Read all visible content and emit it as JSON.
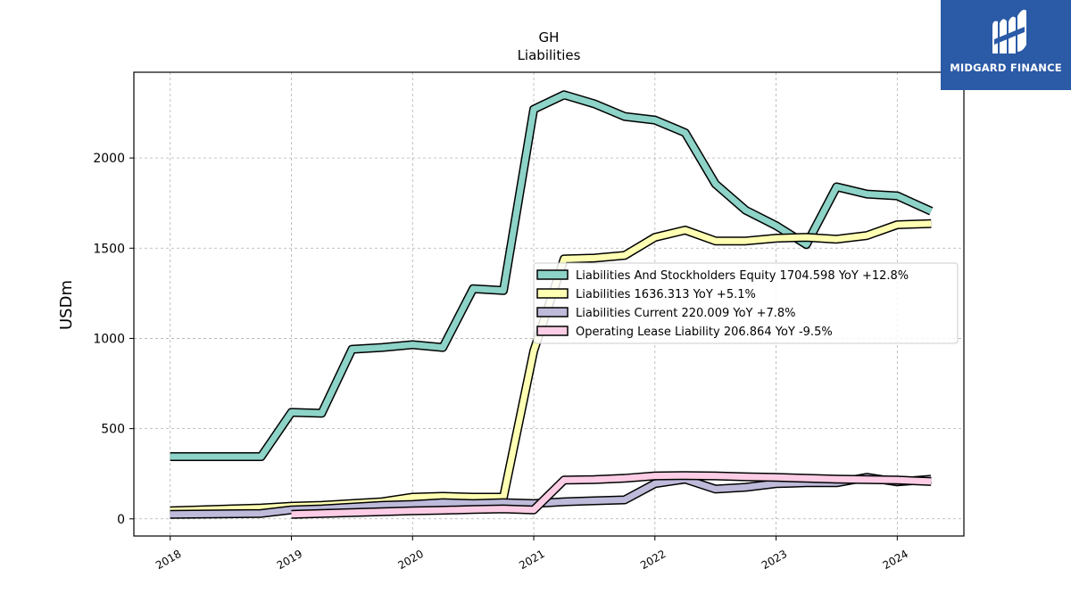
{
  "brand": {
    "name": "MIDGARD FINANCE",
    "color": "#2b5aa6"
  },
  "chart_data": {
    "type": "line",
    "title": "GH",
    "subtitle": "Liabilities",
    "xlabel": "",
    "ylabel": "USDm",
    "xlim": [
      2017.7,
      2024.55
    ],
    "ylim": [
      -95,
      2475
    ],
    "x_ticks": [
      2018,
      2019,
      2020,
      2021,
      2022,
      2023,
      2024
    ],
    "y_ticks": [
      0,
      500,
      1000,
      1500,
      2000
    ],
    "grid": true,
    "legend_position": "center-right",
    "series": [
      {
        "name": "Liabilities And Stockholders Equity  1704.598 YoY +12.8%",
        "color": "#8dd3c7",
        "x": [
          2018.0,
          2018.75,
          2019.0,
          2019.25,
          2019.5,
          2019.75,
          2020.0,
          2020.25,
          2020.5,
          2020.75,
          2021.0,
          2021.25,
          2021.5,
          2021.75,
          2022.0,
          2022.25,
          2022.5,
          2022.75,
          2023.0,
          2023.25,
          2023.5,
          2023.75,
          2024.0,
          2024.28
        ],
        "values": [
          345,
          345,
          590,
          585,
          940,
          950,
          965,
          950,
          1275,
          1265,
          2270,
          2350,
          2300,
          2230,
          2210,
          2140,
          1855,
          1710,
          1625,
          1520,
          1840,
          1800,
          1790,
          1705
        ]
      },
      {
        "name": "Liabilities  1636.313 YoY +5.1%",
        "color": "#ffffb3",
        "x": [
          2018.0,
          2018.75,
          2019.0,
          2019.25,
          2019.5,
          2019.75,
          2020.0,
          2020.25,
          2020.5,
          2020.75,
          2021.0,
          2021.25,
          2021.5,
          2021.75,
          2022.0,
          2022.25,
          2022.5,
          2022.75,
          2023.0,
          2023.25,
          2023.5,
          2023.75,
          2024.0,
          2024.28
        ],
        "values": [
          45,
          60,
          70,
          75,
          85,
          95,
          120,
          125,
          120,
          120,
          930,
          1440,
          1445,
          1460,
          1560,
          1600,
          1540,
          1540,
          1555,
          1560,
          1550,
          1570,
          1630,
          1636
        ]
      },
      {
        "name": "Liabilities Current  220.009 YoY +7.8%",
        "color": "#bebada",
        "x": [
          2018.0,
          2018.75,
          2019.0,
          2019.25,
          2019.5,
          2019.75,
          2020.0,
          2020.25,
          2020.5,
          2020.75,
          2021.0,
          2021.25,
          2021.5,
          2021.75,
          2022.0,
          2022.25,
          2022.5,
          2022.75,
          2023.0,
          2023.25,
          2023.5,
          2023.75,
          2024.0,
          2024.28
        ],
        "values": [
          25,
          30,
          50,
          55,
          65,
          75,
          80,
          90,
          85,
          90,
          85,
          95,
          100,
          105,
          195,
          220,
          165,
          175,
          195,
          200,
          200,
          230,
          205,
          220
        ]
      },
      {
        "name": "Operating Lease Liability  206.864 YoY -9.5%",
        "color": "#fccde5",
        "x": [
          2019.0,
          2019.25,
          2019.5,
          2019.75,
          2020.0,
          2020.25,
          2020.5,
          2020.75,
          2021.0,
          2021.25,
          2021.5,
          2021.75,
          2022.0,
          2022.25,
          2022.5,
          2022.75,
          2023.0,
          2023.25,
          2023.5,
          2023.75,
          2024.0,
          2024.28
        ],
        "values": [
          25,
          30,
          35,
          40,
          45,
          48,
          52,
          55,
          50,
          215,
          218,
          225,
          238,
          240,
          238,
          233,
          230,
          225,
          220,
          218,
          215,
          207
        ]
      }
    ]
  }
}
